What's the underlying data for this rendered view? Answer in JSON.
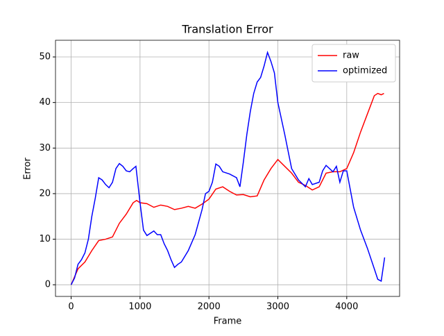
{
  "chart_data": {
    "type": "line",
    "title": "Translation Error",
    "x_label": "Frame",
    "y_label": "Error",
    "xlim": [
      -227,
      4767
    ],
    "ylim": [
      -2.56,
      53.66
    ],
    "xticks": [
      0,
      1000,
      2000,
      3000,
      4000
    ],
    "yticks": [
      0,
      10,
      20,
      30,
      40,
      50
    ],
    "grid": true,
    "legend": "upper right",
    "series": [
      {
        "name": "raw",
        "color": "#ff0000",
        "x": [
          0,
          100,
          200,
          300,
          400,
          500,
          600,
          700,
          800,
          900,
          950,
          1000,
          1100,
          1200,
          1300,
          1400,
          1500,
          1600,
          1700,
          1800,
          1900,
          2000,
          2100,
          2200,
          2300,
          2400,
          2500,
          2600,
          2700,
          2800,
          2900,
          3000,
          3100,
          3200,
          3300,
          3400,
          3500,
          3600,
          3700,
          3800,
          3900,
          4000,
          4100,
          4200,
          4300,
          4400,
          4450,
          4500,
          4540
        ],
        "values": [
          0,
          3.5,
          5,
          7.5,
          9.7,
          10,
          10.5,
          13.5,
          15.5,
          18,
          18.5,
          18,
          17.8,
          17,
          17.5,
          17.2,
          16.5,
          16.8,
          17.2,
          16.8,
          17.7,
          18.8,
          21,
          21.5,
          20.5,
          19.7,
          19.8,
          19.3,
          19.5,
          23,
          25.5,
          27.5,
          26,
          24.5,
          22.5,
          21.8,
          20.8,
          21.5,
          24.5,
          24.8,
          24.8,
          25.5,
          29,
          33.5,
          37.5,
          41.5,
          42,
          41.7,
          42
        ]
      },
      {
        "name": "optimized",
        "color": "#0000ff",
        "x": [
          0,
          50,
          100,
          150,
          200,
          250,
          300,
          350,
          400,
          450,
          500,
          550,
          600,
          650,
          700,
          750,
          800,
          850,
          900,
          940,
          1000,
          1050,
          1100,
          1200,
          1250,
          1300,
          1350,
          1400,
          1450,
          1500,
          1550,
          1600,
          1700,
          1800,
          1900,
          1950,
          2000,
          2050,
          2100,
          2150,
          2200,
          2300,
          2400,
          2450,
          2500,
          2550,
          2600,
          2650,
          2700,
          2750,
          2800,
          2850,
          2900,
          2950,
          3000,
          3100,
          3200,
          3300,
          3400,
          3450,
          3500,
          3600,
          3650,
          3700,
          3800,
          3850,
          3900,
          3950,
          4000,
          4100,
          4200,
          4300,
          4400,
          4450,
          4500,
          4550
        ],
        "values": [
          0,
          1.5,
          4.5,
          5.5,
          7,
          10,
          15,
          19,
          23.5,
          23,
          22,
          21.3,
          22.5,
          25.5,
          26.6,
          26,
          25,
          24.8,
          25.5,
          26,
          18,
          12,
          10.8,
          11.8,
          11,
          11,
          9,
          7.5,
          5.5,
          3.8,
          4.5,
          5,
          7.5,
          11,
          16.5,
          20,
          20.5,
          22.5,
          26.5,
          26,
          24.8,
          24.3,
          23.5,
          21.5,
          27,
          33,
          38,
          42,
          44.5,
          45.5,
          48,
          51,
          49,
          46.5,
          40,
          33,
          25.5,
          23,
          21.5,
          23.3,
          22,
          22.5,
          25,
          26.2,
          24.8,
          26,
          22.5,
          25,
          25,
          17,
          12,
          8,
          3.5,
          1.2,
          0.8,
          6
        ]
      }
    ]
  }
}
